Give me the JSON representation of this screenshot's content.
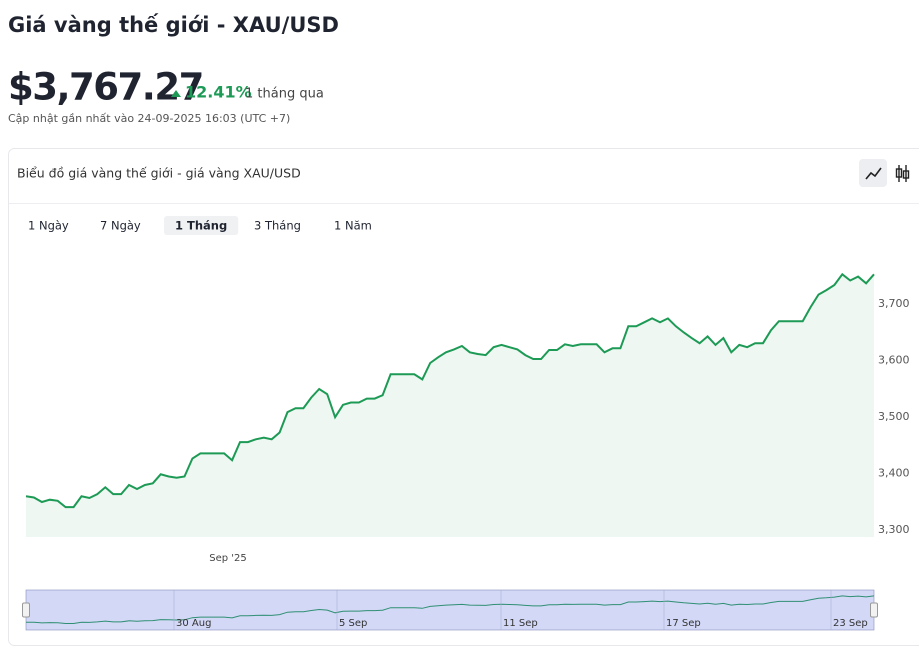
{
  "header": {
    "title": "Giá vàng thế giới - XAU/USD",
    "price": "$3,767.27",
    "change": "12.41%",
    "period": "1 tháng qua",
    "updated": "Cập nhật gần nhất vào 24-09-2025 16:03 (UTC +7)"
  },
  "card": {
    "title": "Biểu đồ giá vàng thế giới - giá vàng XAU/USD",
    "tabs": [
      "1 Ngày",
      "7 Ngày",
      "1 Tháng",
      "3 Tháng",
      "1 Năm"
    ],
    "active_tab": 2
  },
  "chart_data": {
    "type": "area",
    "color": "#1d9a55",
    "fill": "#eef7f1",
    "values": [
      3360,
      3358,
      3350,
      3354,
      3352,
      3341,
      3341,
      3360,
      3357,
      3364,
      3376,
      3364,
      3364,
      3380,
      3373,
      3380,
      3383,
      3399,
      3395,
      3393,
      3395,
      3427,
      3436,
      3436,
      3436,
      3436,
      3424,
      3456,
      3456,
      3461,
      3464,
      3461,
      3473,
      3509,
      3516,
      3516,
      3535,
      3550,
      3541,
      3500,
      3522,
      3526,
      3526,
      3533,
      3533,
      3539,
      3576,
      3576,
      3576,
      3576,
      3567,
      3596,
      3606,
      3615,
      3620,
      3626,
      3615,
      3612,
      3610,
      3624,
      3628,
      3624,
      3620,
      3610,
      3603,
      3603,
      3619,
      3619,
      3629,
      3626,
      3629,
      3629,
      3629,
      3615,
      3622,
      3622,
      3661,
      3661,
      3668,
      3675,
      3668,
      3675,
      3661,
      3650,
      3640,
      3631,
      3643,
      3628,
      3640,
      3615,
      3628,
      3624,
      3631,
      3631,
      3654,
      3670,
      3670,
      3670,
      3670,
      3695,
      3717,
      3725,
      3734,
      3753,
      3742,
      3749,
      3737,
      3753
    ],
    "ylim": [
      3288,
      3796
    ],
    "yticks": [
      {
        "value": 3300,
        "label": "3,300"
      },
      {
        "value": 3400,
        "label": "3,400"
      },
      {
        "value": 3500,
        "label": "3,500"
      },
      {
        "value": 3600,
        "label": "3,600"
      },
      {
        "value": 3700,
        "label": "3,700"
      }
    ],
    "x_labels": [
      "Sep '25"
    ],
    "navigator_labels": [
      "30 Aug",
      "5 Sep",
      "11 Sep",
      "17 Sep",
      "23 Sep"
    ]
  }
}
